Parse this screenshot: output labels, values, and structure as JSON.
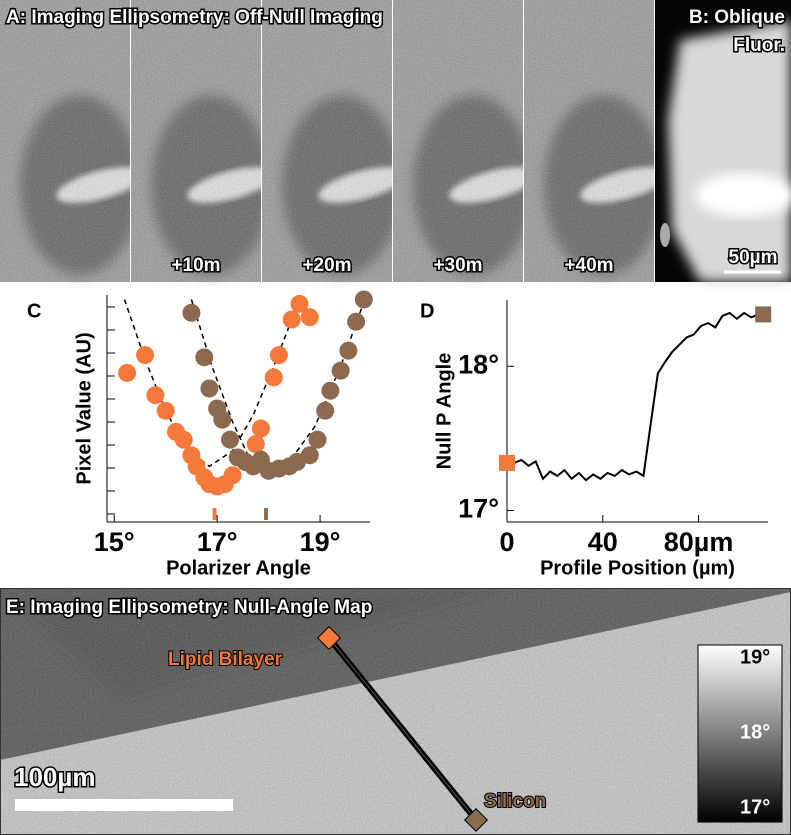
{
  "panel_a": {
    "title": "A: Imaging Ellipsometry: Off-Null Imaging",
    "time_labels": [
      "+10m",
      "+20m",
      "+30m",
      "+40m"
    ]
  },
  "panel_b": {
    "title_lines": [
      "B: Oblique",
      "Fluor."
    ],
    "scale_bar": "50µm"
  },
  "chart_data": [
    {
      "type": "scatter",
      "label": "C",
      "x_label": "Polarizer Angle",
      "y_label": "Pixel Value (AU)",
      "xlim": [
        14.86,
        19.97
      ],
      "ylim": [
        0,
        10.2
      ],
      "xticks": [
        {
          "value": 15,
          "label": "15°"
        },
        {
          "value": 17,
          "label": "17°"
        },
        {
          "value": 19,
          "label": "19°"
        }
      ],
      "series": [
        {
          "color": "#f4793b",
          "null_angle": 16.95,
          "x": [
            15.25,
            15.6,
            15.8,
            16.0,
            16.2,
            16.35,
            16.5,
            16.6,
            16.75,
            16.85,
            17.0,
            17.15,
            17.3,
            17.55,
            17.75,
            17.85,
            18.1,
            18.2,
            18.45,
            18.6,
            18.8
          ],
          "values": [
            6.7,
            7.5,
            5.7,
            5.0,
            4.05,
            3.7,
            3.0,
            2.5,
            2.0,
            1.7,
            1.6,
            1.7,
            2.1,
            2.7,
            3.5,
            4.2,
            6.5,
            7.5,
            9.1,
            9.8,
            9.2
          ]
        },
        {
          "color": "#8b6a4f",
          "null_angle": 17.95,
          "x": [
            16.5,
            16.75,
            16.85,
            17.0,
            17.1,
            17.25,
            17.4,
            17.55,
            17.7,
            17.85,
            18.0,
            18.2,
            18.4,
            18.55,
            18.8,
            18.95,
            19.1,
            19.2,
            19.4,
            19.55,
            19.7,
            19.85
          ],
          "values": [
            9.4,
            7.4,
            6.0,
            5.1,
            4.6,
            3.7,
            2.9,
            2.7,
            2.5,
            2.8,
            2.3,
            2.4,
            2.5,
            2.7,
            3.0,
            3.7,
            5.0,
            5.9,
            6.8,
            7.7,
            9.0,
            10.0
          ]
        }
      ],
      "fits": [
        {
          "color": "#000000",
          "x": [
            15.2,
            15.6,
            16.0,
            16.4,
            16.85,
            17.3,
            17.7,
            18.1,
            18.6
          ],
          "values": [
            10,
            7.3,
            5.0,
            3.3,
            2.5,
            3.2,
            4.8,
            7.0,
            10
          ]
        },
        {
          "color": "#000000",
          "x": [
            16.5,
            16.9,
            17.3,
            17.6,
            17.95,
            18.4,
            18.9,
            19.4,
            19.9
          ],
          "values": [
            10,
            7.0,
            4.5,
            3.0,
            2.4,
            2.7,
            4.3,
            7.0,
            10.2
          ]
        }
      ]
    },
    {
      "type": "line",
      "label": "D",
      "x_label": "Profile Position (µm)",
      "y_label": "Null P Angle",
      "xlim": [
        0,
        109
      ],
      "ylim": [
        16.92,
        18.46
      ],
      "xticks": [
        0,
        40,
        {
          "value": 80,
          "label": "80µm"
        }
      ],
      "yticks": [
        {
          "value": 17,
          "label": "17°"
        },
        {
          "value": 18,
          "label": "18°"
        }
      ],
      "start_color": "#f4793b",
      "end_color": "#8b6a4f",
      "series": [
        {
          "color": "#000000",
          "x": [
            0,
            3,
            6,
            9,
            12,
            15,
            18,
            21,
            24,
            27,
            30,
            33,
            36,
            39,
            42,
            45,
            48,
            51,
            54,
            57,
            60,
            63,
            66,
            69,
            72,
            75,
            78,
            81,
            84,
            87,
            90,
            93,
            96,
            99,
            102,
            105,
            107
          ],
          "values": [
            17.33,
            17.33,
            17.35,
            17.31,
            17.34,
            17.22,
            17.27,
            17.24,
            17.28,
            17.22,
            17.26,
            17.21,
            17.25,
            17.22,
            17.26,
            17.24,
            17.28,
            17.25,
            17.27,
            17.24,
            17.6,
            17.95,
            18.03,
            18.1,
            18.15,
            18.2,
            18.22,
            18.28,
            18.3,
            18.27,
            18.35,
            18.37,
            18.33,
            18.37,
            18.34,
            18.36,
            18.36
          ]
        }
      ]
    }
  ],
  "panel_e": {
    "title": "E: Imaging Ellipsometry: Null-Angle Map",
    "bilayer_label": "Lipid Bilayer",
    "silicon_label": "Silicon",
    "scale_bar": "100µm",
    "colorbar_labels": [
      "19°",
      "18°",
      "17°"
    ]
  }
}
